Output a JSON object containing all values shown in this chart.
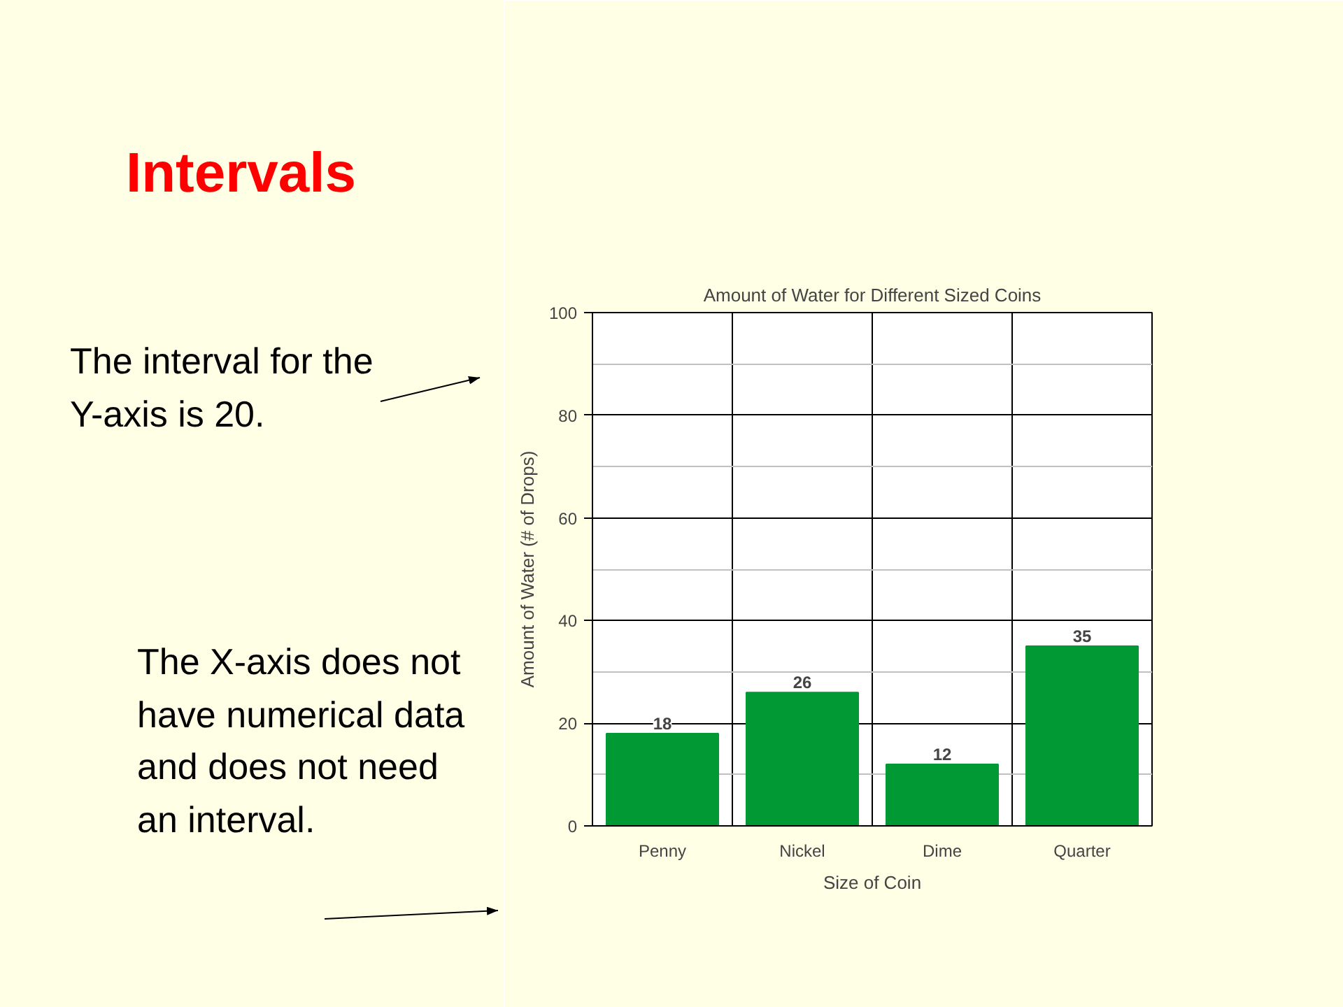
{
  "chart_data": {
    "type": "bar",
    "title": "Amount of Water for Different Sized Coins",
    "xlabel": "Size of Coin",
    "ylabel": "Amount of Water (# of Drops)",
    "categories": [
      "Penny",
      "Nickel",
      "Dime",
      "Quarter"
    ],
    "series": [
      {
        "color": "#009933",
        "values": [
          18,
          26,
          12,
          35
        ]
      }
    ],
    "ylim": [
      0,
      100
    ],
    "yticks": [
      0,
      20,
      40,
      60,
      80,
      100
    ],
    "grid": true,
    "data_labels": true,
    "annotations": [
      "Intervals",
      "The interval for the Y-axis is 20.",
      "The X-axis does not have numerical data and does not need an interval."
    ]
  }
}
